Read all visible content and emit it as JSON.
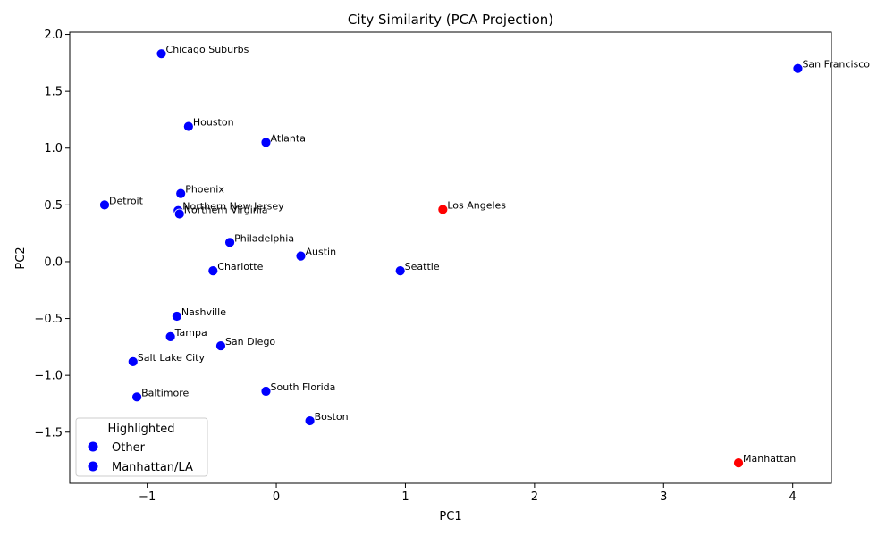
{
  "chart_data": {
    "type": "scatter",
    "title": "City Similarity (PCA Projection)",
    "xlabel": "PC1",
    "ylabel": "PC2",
    "xlim": [
      -1.6,
      4.3
    ],
    "ylim": [
      -1.95,
      2.02
    ],
    "xticks": [
      -1,
      0,
      1,
      2,
      3,
      4
    ],
    "xtick_labels": [
      "−1",
      "0",
      "1",
      "2",
      "3",
      "4"
    ],
    "yticks": [
      -1.5,
      -1.0,
      -0.5,
      0.0,
      0.5,
      1.0,
      1.5,
      2.0
    ],
    "ytick_labels": [
      "−1.5",
      "−1.0",
      "−0.5",
      "0.0",
      "0.5",
      "1.0",
      "1.5",
      "2.0"
    ],
    "grid": false,
    "colors": {
      "other": "#0000ff",
      "highlight": "#ff0000"
    },
    "legend": {
      "title": "Highlighted",
      "placement": "lower-left",
      "entries": [
        {
          "label": "Other",
          "color": "#0000ff"
        },
        {
          "label": "Manhattan/LA",
          "color": "#0000ff"
        }
      ]
    },
    "points": [
      {
        "label": "Chicago Suburbs",
        "x": -0.89,
        "y": 1.83,
        "highlighted": false
      },
      {
        "label": "San Francisco",
        "x": 4.04,
        "y": 1.7,
        "highlighted": false
      },
      {
        "label": "Houston",
        "x": -0.68,
        "y": 1.19,
        "highlighted": false
      },
      {
        "label": "Atlanta",
        "x": -0.08,
        "y": 1.05,
        "highlighted": false
      },
      {
        "label": "Phoenix",
        "x": -0.74,
        "y": 0.6,
        "highlighted": false
      },
      {
        "label": "Detroit",
        "x": -1.33,
        "y": 0.5,
        "highlighted": false
      },
      {
        "label": "Northern New Jersey",
        "x": -0.76,
        "y": 0.45,
        "highlighted": false
      },
      {
        "label": "Northern Virginia",
        "x": -0.75,
        "y": 0.42,
        "highlighted": false
      },
      {
        "label": "Los Angeles",
        "x": 1.29,
        "y": 0.46,
        "highlighted": true
      },
      {
        "label": "Philadelphia",
        "x": -0.36,
        "y": 0.17,
        "highlighted": false
      },
      {
        "label": "Austin",
        "x": 0.19,
        "y": 0.05,
        "highlighted": false
      },
      {
        "label": "Seattle",
        "x": 0.96,
        "y": -0.08,
        "highlighted": false
      },
      {
        "label": "Charlotte",
        "x": -0.49,
        "y": -0.08,
        "highlighted": false
      },
      {
        "label": "Nashville",
        "x": -0.77,
        "y": -0.48,
        "highlighted": false
      },
      {
        "label": "Tampa",
        "x": -0.82,
        "y": -0.66,
        "highlighted": false
      },
      {
        "label": "San Diego",
        "x": -0.43,
        "y": -0.74,
        "highlighted": false
      },
      {
        "label": "Salt Lake City",
        "x": -1.11,
        "y": -0.88,
        "highlighted": false
      },
      {
        "label": "South Florida",
        "x": -0.08,
        "y": -1.14,
        "highlighted": false
      },
      {
        "label": "Baltimore",
        "x": -1.08,
        "y": -1.19,
        "highlighted": false
      },
      {
        "label": "Boston",
        "x": 0.26,
        "y": -1.4,
        "highlighted": false
      },
      {
        "label": "Manhattan",
        "x": 3.58,
        "y": -1.77,
        "highlighted": true
      }
    ]
  }
}
